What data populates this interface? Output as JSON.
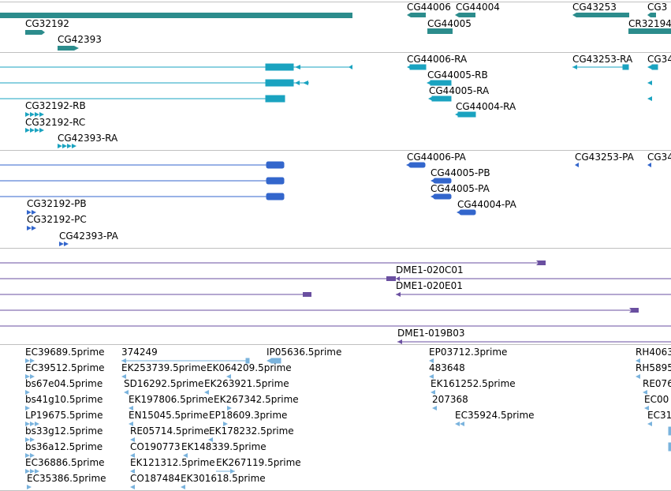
{
  "tracks": {
    "gene": {
      "labels": [
        "CG32192",
        "CG42393",
        "CG44006",
        "CG44004",
        "CG44005",
        "CG43253",
        "CG3",
        "CR32194"
      ],
      "color": "#2c8c8c"
    },
    "transcript": {
      "labels": [
        "CG44006-RA",
        "CG43253-RA",
        "CG34",
        "CG44005-RB",
        "CG44005-RA",
        "CG44004-RA",
        "CG32192-RB",
        "CG32192-RC",
        "CG42393-RA"
      ],
      "color": "#1aa3c0"
    },
    "protein": {
      "labels": [
        "CG44006-PA",
        "CG43253-PA",
        "CG34",
        "CG44005-PB",
        "CG44005-PA",
        "CG44004-PA",
        "CG32192-PB",
        "CG32192-PC",
        "CG42393-PA"
      ],
      "color": "#3366cc"
    },
    "clone": {
      "labels": [
        "DME1-020C01",
        "DME1-020E01",
        "DME1-019B03"
      ],
      "color": "#6a4fa0"
    },
    "est": {
      "labels": [
        "EC39689.5prime",
        "374249",
        "IP05636.5prime",
        "EP03712.3prime",
        "RH4063",
        "EC39512.5prime",
        "EK253739.5prime",
        "EK064209.5prime",
        "483648",
        "RH5895",
        "bs67e04.5prime",
        "SD16292.5prime",
        "EK263921.5prime",
        "EK161252.5prime",
        "RE076",
        "bs41g10.5prime",
        "EK197806.5prime",
        "EK267342.5prime",
        "207368",
        "EC00",
        "LP19675.5prime",
        "EN15045.5prime",
        "EP18609.3prime",
        "EC35924.5prime",
        "EC31",
        "bs33g12.5prime",
        "RE05714.5prime",
        "EK178232.5prime",
        "bs36a12.5prime",
        "CO190773",
        "EK148339.5prime",
        "EC36886.5prime",
        "EK121312.5prime",
        "EK267119.5prime",
        "EC35386.5prime",
        "CO187484",
        "EK301618.5prime"
      ],
      "color": "#7ab3dd"
    }
  }
}
